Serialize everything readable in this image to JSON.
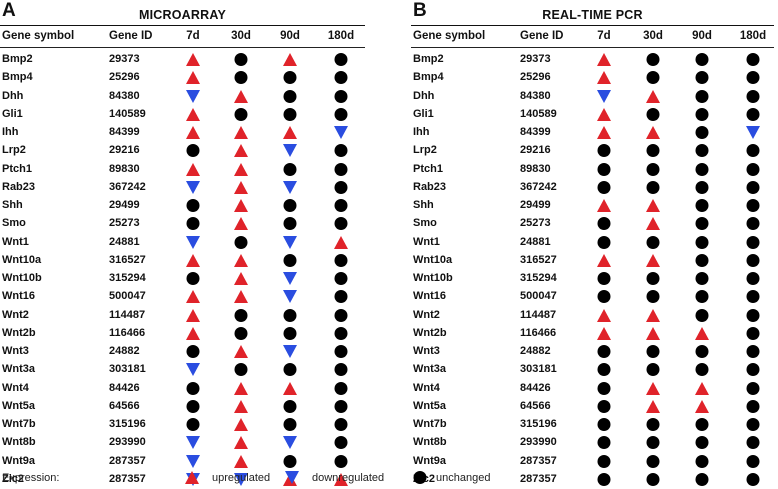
{
  "colors": {
    "up": "#e0232a",
    "down": "#2a4de0",
    "same": "#000000"
  },
  "headers": {
    "symbol": "Gene symbol",
    "id": "Gene ID",
    "t1": "7d",
    "t2": "30d",
    "t3": "90d",
    "t4": "180d"
  },
  "panels": [
    {
      "letter": "A",
      "title": "MICROARRAY",
      "genes": [
        {
          "symbol": "Bmp2",
          "id": "29373",
          "expr": [
            "up",
            "same",
            "up",
            "same"
          ]
        },
        {
          "symbol": "Bmp4",
          "id": "25296",
          "expr": [
            "up",
            "same",
            "same",
            "same"
          ]
        },
        {
          "symbol": "Dhh",
          "id": "84380",
          "expr": [
            "down",
            "up",
            "same",
            "same"
          ]
        },
        {
          "symbol": "Gli1",
          "id": "140589",
          "expr": [
            "up",
            "same",
            "same",
            "same"
          ]
        },
        {
          "symbol": "Ihh",
          "id": "84399",
          "expr": [
            "up",
            "up",
            "up",
            "down"
          ]
        },
        {
          "symbol": "Lrp2",
          "id": "29216",
          "expr": [
            "same",
            "up",
            "down",
            "same"
          ]
        },
        {
          "symbol": "Ptch1",
          "id": "89830",
          "expr": [
            "up",
            "up",
            "same",
            "same"
          ]
        },
        {
          "symbol": "Rab23",
          "id": "367242",
          "expr": [
            "down",
            "up",
            "down",
            "same"
          ]
        },
        {
          "symbol": "Shh",
          "id": "29499",
          "expr": [
            "same",
            "up",
            "same",
            "same"
          ]
        },
        {
          "symbol": "Smo",
          "id": "25273",
          "expr": [
            "same",
            "up",
            "same",
            "same"
          ]
        },
        {
          "symbol": "Wnt1",
          "id": "24881",
          "expr": [
            "down",
            "same",
            "down",
            "up"
          ]
        },
        {
          "symbol": "Wnt10a",
          "id": "316527",
          "expr": [
            "up",
            "up",
            "same",
            "same"
          ]
        },
        {
          "symbol": "Wnt10b",
          "id": "315294",
          "expr": [
            "same",
            "up",
            "down",
            "same"
          ]
        },
        {
          "symbol": "Wnt16",
          "id": "500047",
          "expr": [
            "up",
            "up",
            "down",
            "same"
          ]
        },
        {
          "symbol": "Wnt2",
          "id": "114487",
          "expr": [
            "up",
            "same",
            "same",
            "same"
          ]
        },
        {
          "symbol": "Wnt2b",
          "id": "116466",
          "expr": [
            "up",
            "same",
            "same",
            "same"
          ]
        },
        {
          "symbol": "Wnt3",
          "id": "24882",
          "expr": [
            "same",
            "up",
            "down",
            "same"
          ]
        },
        {
          "symbol": "Wnt3a",
          "id": "303181",
          "expr": [
            "down",
            "same",
            "same",
            "same"
          ]
        },
        {
          "symbol": "Wnt4",
          "id": "84426",
          "expr": [
            "same",
            "up",
            "up",
            "same"
          ]
        },
        {
          "symbol": "Wnt5a",
          "id": "64566",
          "expr": [
            "same",
            "up",
            "same",
            "same"
          ]
        },
        {
          "symbol": "Wnt7b",
          "id": "315196",
          "expr": [
            "same",
            "up",
            "same",
            "same"
          ]
        },
        {
          "symbol": "Wnt8b",
          "id": "293990",
          "expr": [
            "down",
            "up",
            "down",
            "same"
          ]
        },
        {
          "symbol": "Wnt9a",
          "id": "287357",
          "expr": [
            "down",
            "up",
            "same",
            "same"
          ]
        },
        {
          "symbol": "Zic2",
          "id": "287357",
          "expr": [
            "down",
            "down",
            "up",
            "up"
          ]
        }
      ]
    },
    {
      "letter": "B",
      "title": "REAL-TIME PCR",
      "genes": [
        {
          "symbol": "Bmp2",
          "id": "29373",
          "expr": [
            "up",
            "same",
            "same",
            "same"
          ]
        },
        {
          "symbol": "Bmp4",
          "id": "25296",
          "expr": [
            "up",
            "same",
            "same",
            "same"
          ]
        },
        {
          "symbol": "Dhh",
          "id": "84380",
          "expr": [
            "down",
            "up",
            "same",
            "same"
          ]
        },
        {
          "symbol": "Gli1",
          "id": "140589",
          "expr": [
            "up",
            "same",
            "same",
            "same"
          ]
        },
        {
          "symbol": "Ihh",
          "id": "84399",
          "expr": [
            "up",
            "up",
            "same",
            "down"
          ]
        },
        {
          "symbol": "Lrp2",
          "id": "29216",
          "expr": [
            "same",
            "same",
            "same",
            "same"
          ]
        },
        {
          "symbol": "Ptch1",
          "id": "89830",
          "expr": [
            "same",
            "same",
            "same",
            "same"
          ]
        },
        {
          "symbol": "Rab23",
          "id": "367242",
          "expr": [
            "same",
            "same",
            "same",
            "same"
          ]
        },
        {
          "symbol": "Shh",
          "id": "29499",
          "expr": [
            "up",
            "up",
            "same",
            "same"
          ]
        },
        {
          "symbol": "Smo",
          "id": "25273",
          "expr": [
            "same",
            "up",
            "same",
            "same"
          ]
        },
        {
          "symbol": "Wnt1",
          "id": "24881",
          "expr": [
            "same",
            "same",
            "same",
            "same"
          ]
        },
        {
          "symbol": "Wnt10a",
          "id": "316527",
          "expr": [
            "up",
            "up",
            "same",
            "same"
          ]
        },
        {
          "symbol": "Wnt10b",
          "id": "315294",
          "expr": [
            "same",
            "same",
            "same",
            "same"
          ]
        },
        {
          "symbol": "Wnt16",
          "id": "500047",
          "expr": [
            "same",
            "same",
            "same",
            "same"
          ]
        },
        {
          "symbol": "Wnt2",
          "id": "114487",
          "expr": [
            "up",
            "up",
            "same",
            "same"
          ]
        },
        {
          "symbol": "Wnt2b",
          "id": "116466",
          "expr": [
            "up",
            "up",
            "up",
            "same"
          ]
        },
        {
          "symbol": "Wnt3",
          "id": "24882",
          "expr": [
            "same",
            "same",
            "same",
            "same"
          ]
        },
        {
          "symbol": "Wnt3a",
          "id": "303181",
          "expr": [
            "same",
            "same",
            "same",
            "same"
          ]
        },
        {
          "symbol": "Wnt4",
          "id": "84426",
          "expr": [
            "same",
            "up",
            "up",
            "same"
          ]
        },
        {
          "symbol": "Wnt5a",
          "id": "64566",
          "expr": [
            "same",
            "up",
            "up",
            "same"
          ]
        },
        {
          "symbol": "Wnt7b",
          "id": "315196",
          "expr": [
            "same",
            "same",
            "same",
            "same"
          ]
        },
        {
          "symbol": "Wnt8b",
          "id": "293990",
          "expr": [
            "same",
            "same",
            "same",
            "same"
          ]
        },
        {
          "symbol": "Wnt9a",
          "id": "287357",
          "expr": [
            "same",
            "same",
            "same",
            "same"
          ]
        },
        {
          "symbol": "Zic2",
          "id": "287357",
          "expr": [
            "same",
            "same",
            "same",
            "same"
          ]
        }
      ]
    }
  ],
  "legend": {
    "label": "Expression:",
    "up": "upregulated",
    "down": "downregulated",
    "same": "unchanged"
  }
}
